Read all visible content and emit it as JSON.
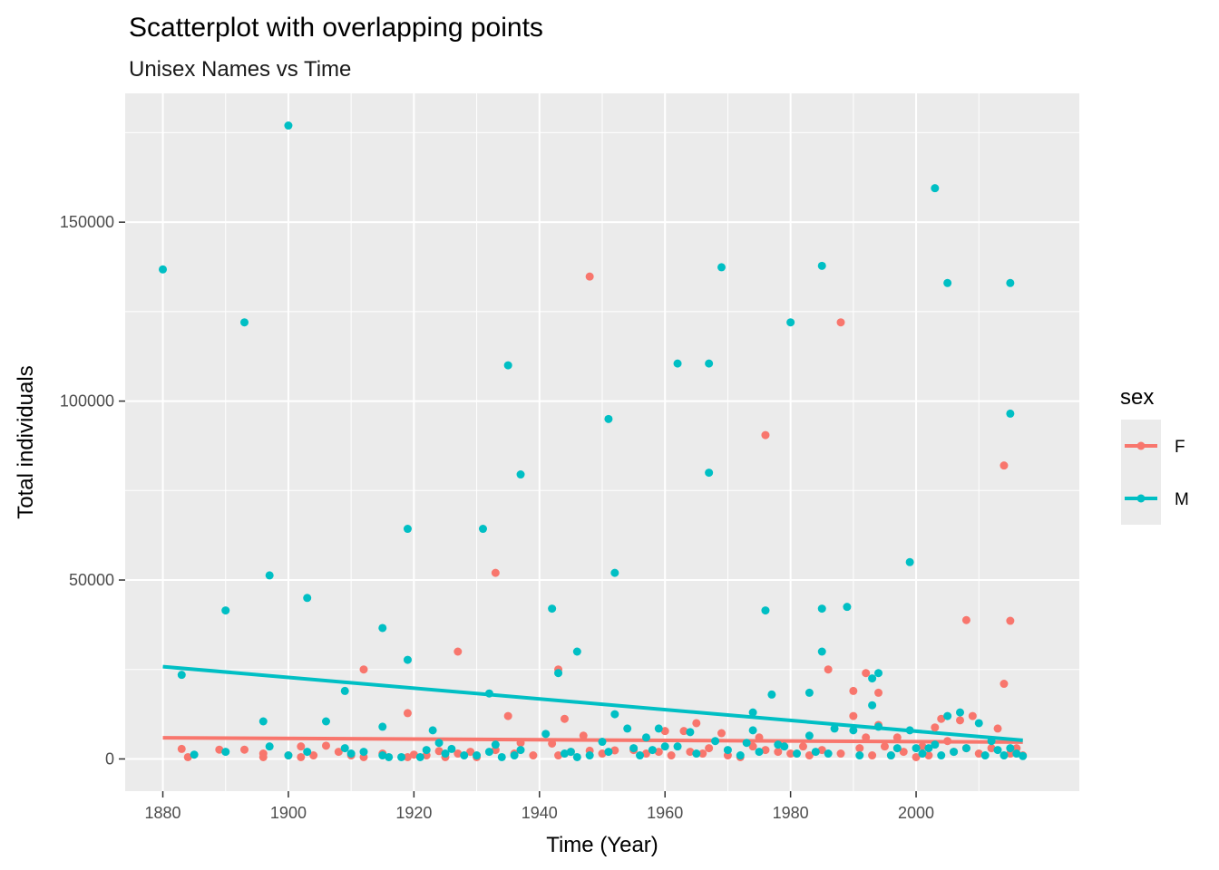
{
  "chart_data": {
    "type": "scatter",
    "title": "Scatterplot with overlapping points",
    "subtitle": "Unisex Names vs Time",
    "xlabel": "Time (Year)",
    "ylabel": "Total individuals",
    "xlim": [
      1874,
      2026
    ],
    "ylim": [
      -9000,
      186000
    ],
    "x_ticks": [
      1880,
      1900,
      1920,
      1940,
      1960,
      1980,
      2000
    ],
    "x_tick_labels": [
      "1880",
      "1900",
      "1920",
      "1940",
      "1960",
      "1980",
      "2000"
    ],
    "x_minor_ticks": [
      1890,
      1910,
      1930,
      1950,
      1970,
      1990,
      2010
    ],
    "y_ticks": [
      0,
      50000,
      100000,
      150000
    ],
    "y_tick_labels": [
      "0",
      "50000",
      "100000",
      "150000"
    ],
    "y_minor_ticks": [
      25000,
      75000,
      125000,
      175000
    ],
    "grid": true,
    "legend": {
      "title": "sex",
      "position": "right"
    },
    "series": [
      {
        "name": "F",
        "color": "#F8766D",
        "trend": [
          [
            1880,
            5900
          ],
          [
            2017,
            4700
          ]
        ],
        "points": [
          [
            1883,
            2800
          ],
          [
            1884,
            500
          ],
          [
            1889,
            2600
          ],
          [
            1893,
            2600
          ],
          [
            1896,
            1500
          ],
          [
            1896,
            500
          ],
          [
            1900,
            1000
          ],
          [
            1902,
            3500
          ],
          [
            1902,
            500
          ],
          [
            1904,
            1000
          ],
          [
            1906,
            3700
          ],
          [
            1908,
            2000
          ],
          [
            1910,
            1000
          ],
          [
            1912,
            25000
          ],
          [
            1912,
            500
          ],
          [
            1915,
            1500
          ],
          [
            1919,
            12800
          ],
          [
            1919,
            500
          ],
          [
            1920,
            1200
          ],
          [
            1922,
            1000
          ],
          [
            1924,
            2200
          ],
          [
            1925,
            500
          ],
          [
            1927,
            30000
          ],
          [
            1927,
            1500
          ],
          [
            1929,
            2000
          ],
          [
            1930,
            500
          ],
          [
            1933,
            52000
          ],
          [
            1933,
            2500
          ],
          [
            1935,
            12000
          ],
          [
            1936,
            1500
          ],
          [
            1937,
            4500
          ],
          [
            1939,
            1000
          ],
          [
            1942,
            4300
          ],
          [
            1943,
            25000
          ],
          [
            1943,
            1000
          ],
          [
            1944,
            11200
          ],
          [
            1945,
            2000
          ],
          [
            1947,
            6500
          ],
          [
            1948,
            134800
          ],
          [
            1948,
            2300
          ],
          [
            1950,
            1500
          ],
          [
            1952,
            2400
          ],
          [
            1955,
            2500
          ],
          [
            1957,
            1500
          ],
          [
            1959,
            2000
          ],
          [
            1960,
            7800
          ],
          [
            1961,
            1000
          ],
          [
            1963,
            7800
          ],
          [
            1964,
            2000
          ],
          [
            1965,
            10000
          ],
          [
            1966,
            1500
          ],
          [
            1967,
            3000
          ],
          [
            1969,
            7200
          ],
          [
            1970,
            1000
          ],
          [
            1972,
            500
          ],
          [
            1974,
            3500
          ],
          [
            1975,
            6000
          ],
          [
            1976,
            90500
          ],
          [
            1976,
            2500
          ],
          [
            1978,
            2000
          ],
          [
            1980,
            1500
          ],
          [
            1982,
            3500
          ],
          [
            1983,
            1000
          ],
          [
            1985,
            2500
          ],
          [
            1986,
            25000
          ],
          [
            1988,
            122000
          ],
          [
            1988,
            1500
          ],
          [
            1990,
            19000
          ],
          [
            1990,
            12000
          ],
          [
            1991,
            3000
          ],
          [
            1992,
            24000
          ],
          [
            1992,
            6000
          ],
          [
            1993,
            1000
          ],
          [
            1994,
            18500
          ],
          [
            1994,
            9500
          ],
          [
            1995,
            3500
          ],
          [
            1996,
            1000
          ],
          [
            1997,
            6000
          ],
          [
            1998,
            2000
          ],
          [
            2000,
            500
          ],
          [
            2001,
            3500
          ],
          [
            2002,
            1000
          ],
          [
            2003,
            8800
          ],
          [
            2004,
            11200
          ],
          [
            2005,
            5000
          ],
          [
            2006,
            2000
          ],
          [
            2007,
            10800
          ],
          [
            2008,
            38800
          ],
          [
            2008,
            3000
          ],
          [
            2009,
            12000
          ],
          [
            2010,
            1500
          ],
          [
            2012,
            3000
          ],
          [
            2013,
            8500
          ],
          [
            2014,
            82000
          ],
          [
            2014,
            21000
          ],
          [
            2015,
            38600
          ],
          [
            2015,
            1500
          ],
          [
            2016,
            3000
          ],
          [
            2017,
            1000
          ]
        ]
      },
      {
        "name": "M",
        "color": "#00BFC4",
        "trend": [
          [
            1880,
            25800
          ],
          [
            2017,
            5200
          ]
        ],
        "points": [
          [
            1880,
            136800
          ],
          [
            1883,
            23500
          ],
          [
            1885,
            1200
          ],
          [
            1890,
            41500
          ],
          [
            1890,
            2000
          ],
          [
            1893,
            122000
          ],
          [
            1896,
            10500
          ],
          [
            1897,
            51300
          ],
          [
            1897,
            3500
          ],
          [
            1900,
            177000
          ],
          [
            1900,
            1000
          ],
          [
            1903,
            45000
          ],
          [
            1903,
            2000
          ],
          [
            1906,
            10500
          ],
          [
            1909,
            19000
          ],
          [
            1909,
            3000
          ],
          [
            1910,
            1500
          ],
          [
            1912,
            2000
          ],
          [
            1915,
            36600
          ],
          [
            1915,
            9000
          ],
          [
            1915,
            1000
          ],
          [
            1916,
            500
          ],
          [
            1918,
            500
          ],
          [
            1919,
            64300
          ],
          [
            1919,
            27700
          ],
          [
            1921,
            500
          ],
          [
            1922,
            2500
          ],
          [
            1923,
            8000
          ],
          [
            1924,
            4500
          ],
          [
            1925,
            1500
          ],
          [
            1926,
            2800
          ],
          [
            1928,
            1000
          ],
          [
            1930,
            1000
          ],
          [
            1931,
            64300
          ],
          [
            1932,
            18300
          ],
          [
            1932,
            2000
          ],
          [
            1933,
            4000
          ],
          [
            1934,
            500
          ],
          [
            1935,
            110000
          ],
          [
            1936,
            1000
          ],
          [
            1937,
            79500
          ],
          [
            1937,
            2500
          ],
          [
            1941,
            7000
          ],
          [
            1942,
            42000
          ],
          [
            1943,
            24000
          ],
          [
            1944,
            1500
          ],
          [
            1945,
            2000
          ],
          [
            1946,
            30000
          ],
          [
            1946,
            500
          ],
          [
            1948,
            1000
          ],
          [
            1950,
            4800
          ],
          [
            1951,
            95000
          ],
          [
            1951,
            2000
          ],
          [
            1952,
            52000
          ],
          [
            1952,
            12500
          ],
          [
            1954,
            8500
          ],
          [
            1955,
            3000
          ],
          [
            1956,
            1000
          ],
          [
            1957,
            6000
          ],
          [
            1958,
            2500
          ],
          [
            1959,
            8500
          ],
          [
            1960,
            3500
          ],
          [
            1962,
            110500
          ],
          [
            1962,
            3500
          ],
          [
            1964,
            7500
          ],
          [
            1965,
            1500
          ],
          [
            1967,
            110500
          ],
          [
            1967,
            80000
          ],
          [
            1968,
            5000
          ],
          [
            1969,
            137400
          ],
          [
            1970,
            2500
          ],
          [
            1972,
            1000
          ],
          [
            1973,
            4500
          ],
          [
            1974,
            13000
          ],
          [
            1974,
            8000
          ],
          [
            1975,
            2000
          ],
          [
            1976,
            41500
          ],
          [
            1977,
            18000
          ],
          [
            1978,
            4000
          ],
          [
            1979,
            3500
          ],
          [
            1980,
            122000
          ],
          [
            1981,
            1500
          ],
          [
            1983,
            18500
          ],
          [
            1983,
            6500
          ],
          [
            1984,
            2000
          ],
          [
            1985,
            137800
          ],
          [
            1985,
            42000
          ],
          [
            1985,
            30000
          ],
          [
            1986,
            1500
          ],
          [
            1987,
            8500
          ],
          [
            1989,
            42500
          ],
          [
            1990,
            8000
          ],
          [
            1991,
            1000
          ],
          [
            1993,
            22500
          ],
          [
            1993,
            15000
          ],
          [
            1994,
            24000
          ],
          [
            1994,
            9000
          ],
          [
            1996,
            1000
          ],
          [
            1997,
            3000
          ],
          [
            1999,
            55000
          ],
          [
            1999,
            8000
          ],
          [
            2000,
            3000
          ],
          [
            2001,
            1500
          ],
          [
            2002,
            3000
          ],
          [
            2003,
            159500
          ],
          [
            2003,
            4000
          ],
          [
            2004,
            1000
          ],
          [
            2005,
            133000
          ],
          [
            2005,
            12000
          ],
          [
            2006,
            2000
          ],
          [
            2007,
            13000
          ],
          [
            2008,
            3000
          ],
          [
            2010,
            10000
          ],
          [
            2011,
            1000
          ],
          [
            2012,
            5000
          ],
          [
            2013,
            2500
          ],
          [
            2014,
            1000
          ],
          [
            2015,
            133000
          ],
          [
            2015,
            96500
          ],
          [
            2015,
            3000
          ],
          [
            2016,
            1500
          ],
          [
            2017,
            800
          ]
        ]
      }
    ]
  }
}
